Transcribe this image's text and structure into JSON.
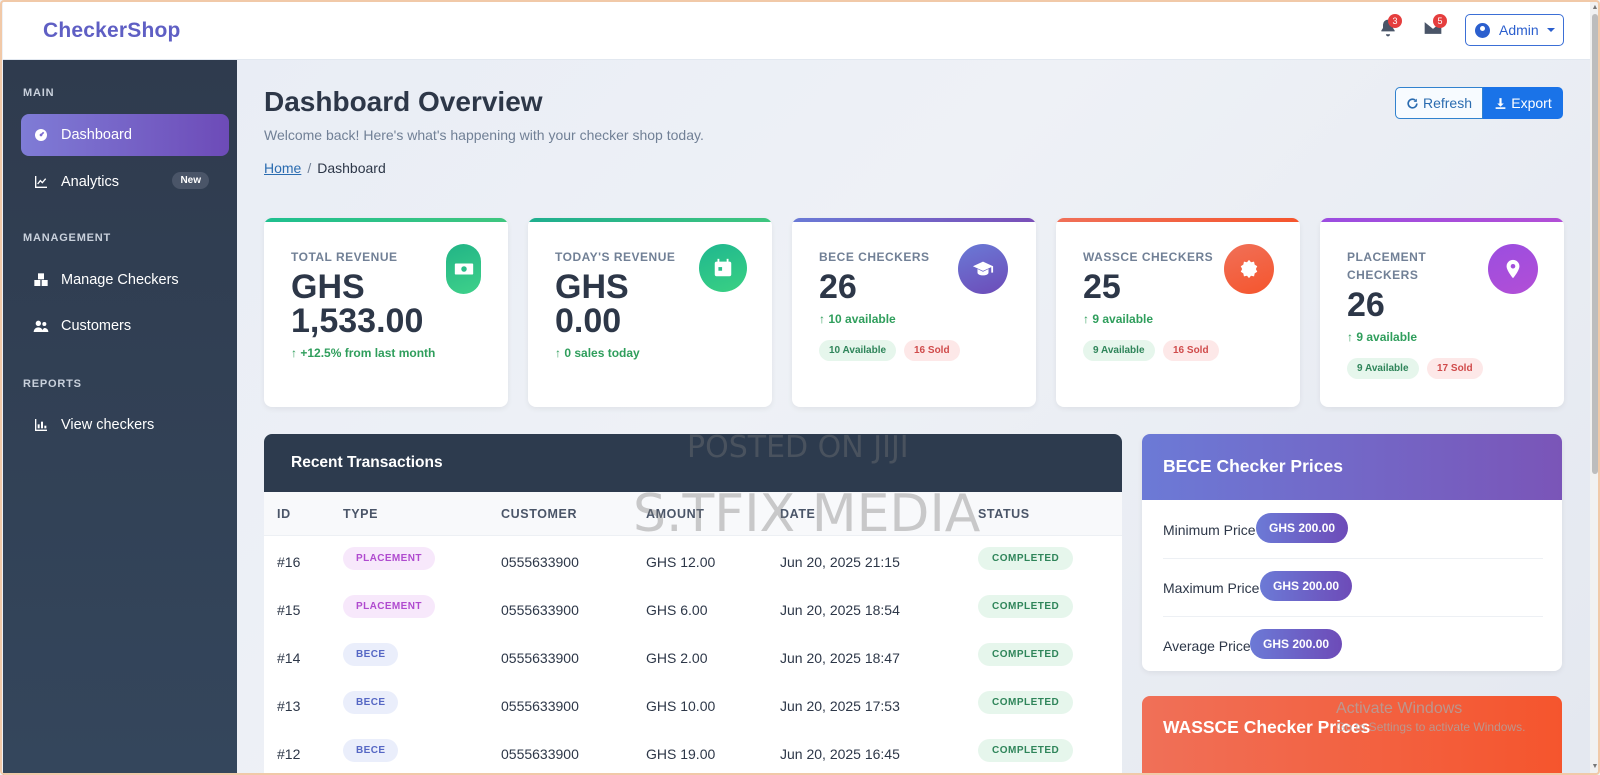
{
  "brand": "CheckerShop",
  "navbar": {
    "notifications_count": "3",
    "messages_count": "5",
    "admin_label": "Admin",
    "icons": [
      "bell-icon",
      "envelope-icon",
      "user-circle-icon"
    ]
  },
  "sidebar": {
    "sections": [
      {
        "title": "MAIN"
      },
      {
        "title": "MANAGEMENT"
      },
      {
        "title": "REPORTS"
      }
    ],
    "items": [
      {
        "label": "Dashboard",
        "icon": "gauge-icon"
      },
      {
        "label": "Analytics",
        "icon": "chart-line-icon",
        "badge": "New"
      },
      {
        "label": "Manage Checkers",
        "icon": "boxes-icon"
      },
      {
        "label": "Customers",
        "icon": "users-icon"
      },
      {
        "label": "View checkers",
        "icon": "bar-chart-icon"
      }
    ]
  },
  "header": {
    "title": "Dashboard Overview",
    "subtitle": "Welcome back! Here's what's happening with your checker shop today.",
    "breadcrumb": {
      "home": "Home",
      "current": "Dashboard"
    },
    "refresh_label": "Refresh",
    "export_label": "Export"
  },
  "stats": [
    {
      "label": "TOTAL REVENUE",
      "value_line1": "GHS",
      "value_line2": "1,533.00",
      "trend": "+12.5% from last month",
      "icon": "money-icon",
      "color": "#1fbf8f"
    },
    {
      "label": "TODAY'S REVENUE",
      "value_line1": "GHS",
      "value_line2": "0.00",
      "trend": "0 sales today",
      "icon": "calendar-icon",
      "color": "#1fbf8f"
    },
    {
      "label": "BECE CHECKERS",
      "value": "26",
      "trend": "10 available",
      "available": "10 Available",
      "sold": "16 Sold",
      "icon": "graduation-cap-icon",
      "color": "#6a5acd"
    },
    {
      "label": "WASSCE CHECKERS",
      "value": "25",
      "trend": "9 available",
      "available": "9 Available",
      "sold": "16 Sold",
      "icon": "certificate-icon",
      "color": "#f5552d"
    },
    {
      "label_line1": "PLACEMENT",
      "label_line2": "CHECKERS",
      "value": "26",
      "trend": "9 available",
      "available": "9 Available",
      "sold": "17 Sold",
      "icon": "map-pin-icon",
      "color": "#9b4de0"
    }
  ],
  "transactions": {
    "title": "Recent Transactions",
    "columns": [
      "ID",
      "TYPE",
      "CUSTOMER",
      "AMOUNT",
      "DATE",
      "STATUS"
    ],
    "rows": [
      {
        "id": "#16",
        "type": "PLACEMENT",
        "customer": "0555633900",
        "amount": "GHS 12.00",
        "date": "Jun 20, 2025 21:15",
        "status": "COMPLETED"
      },
      {
        "id": "#15",
        "type": "PLACEMENT",
        "customer": "0555633900",
        "amount": "GHS 6.00",
        "date": "Jun 20, 2025 18:54",
        "status": "COMPLETED"
      },
      {
        "id": "#14",
        "type": "BECE",
        "customer": "0555633900",
        "amount": "GHS 2.00",
        "date": "Jun 20, 2025 18:47",
        "status": "COMPLETED"
      },
      {
        "id": "#13",
        "type": "BECE",
        "customer": "0555633900",
        "amount": "GHS 10.00",
        "date": "Jun 20, 2025 17:53",
        "status": "COMPLETED"
      },
      {
        "id": "#12",
        "type": "BECE",
        "customer": "0555633900",
        "amount": "GHS 19.00",
        "date": "Jun 20, 2025 16:45",
        "status": "COMPLETED"
      }
    ]
  },
  "bece_prices": {
    "title": "BECE Checker Prices",
    "rows": [
      {
        "label": "Minimum Price",
        "value": "GHS 200.00"
      },
      {
        "label": "Maximum Price",
        "value": "GHS 200.00"
      },
      {
        "label": "Average Price",
        "value": "GHS 200.00"
      }
    ]
  },
  "wassce_prices": {
    "title": "WASSCE Checker Prices"
  },
  "overlays": {
    "watermark_1": "POSTED ON JIJI",
    "watermark_2": "S.TFIX MEDIA",
    "activate_title": "Activate Windows",
    "activate_sub": "Go to Settings to activate Windows."
  }
}
